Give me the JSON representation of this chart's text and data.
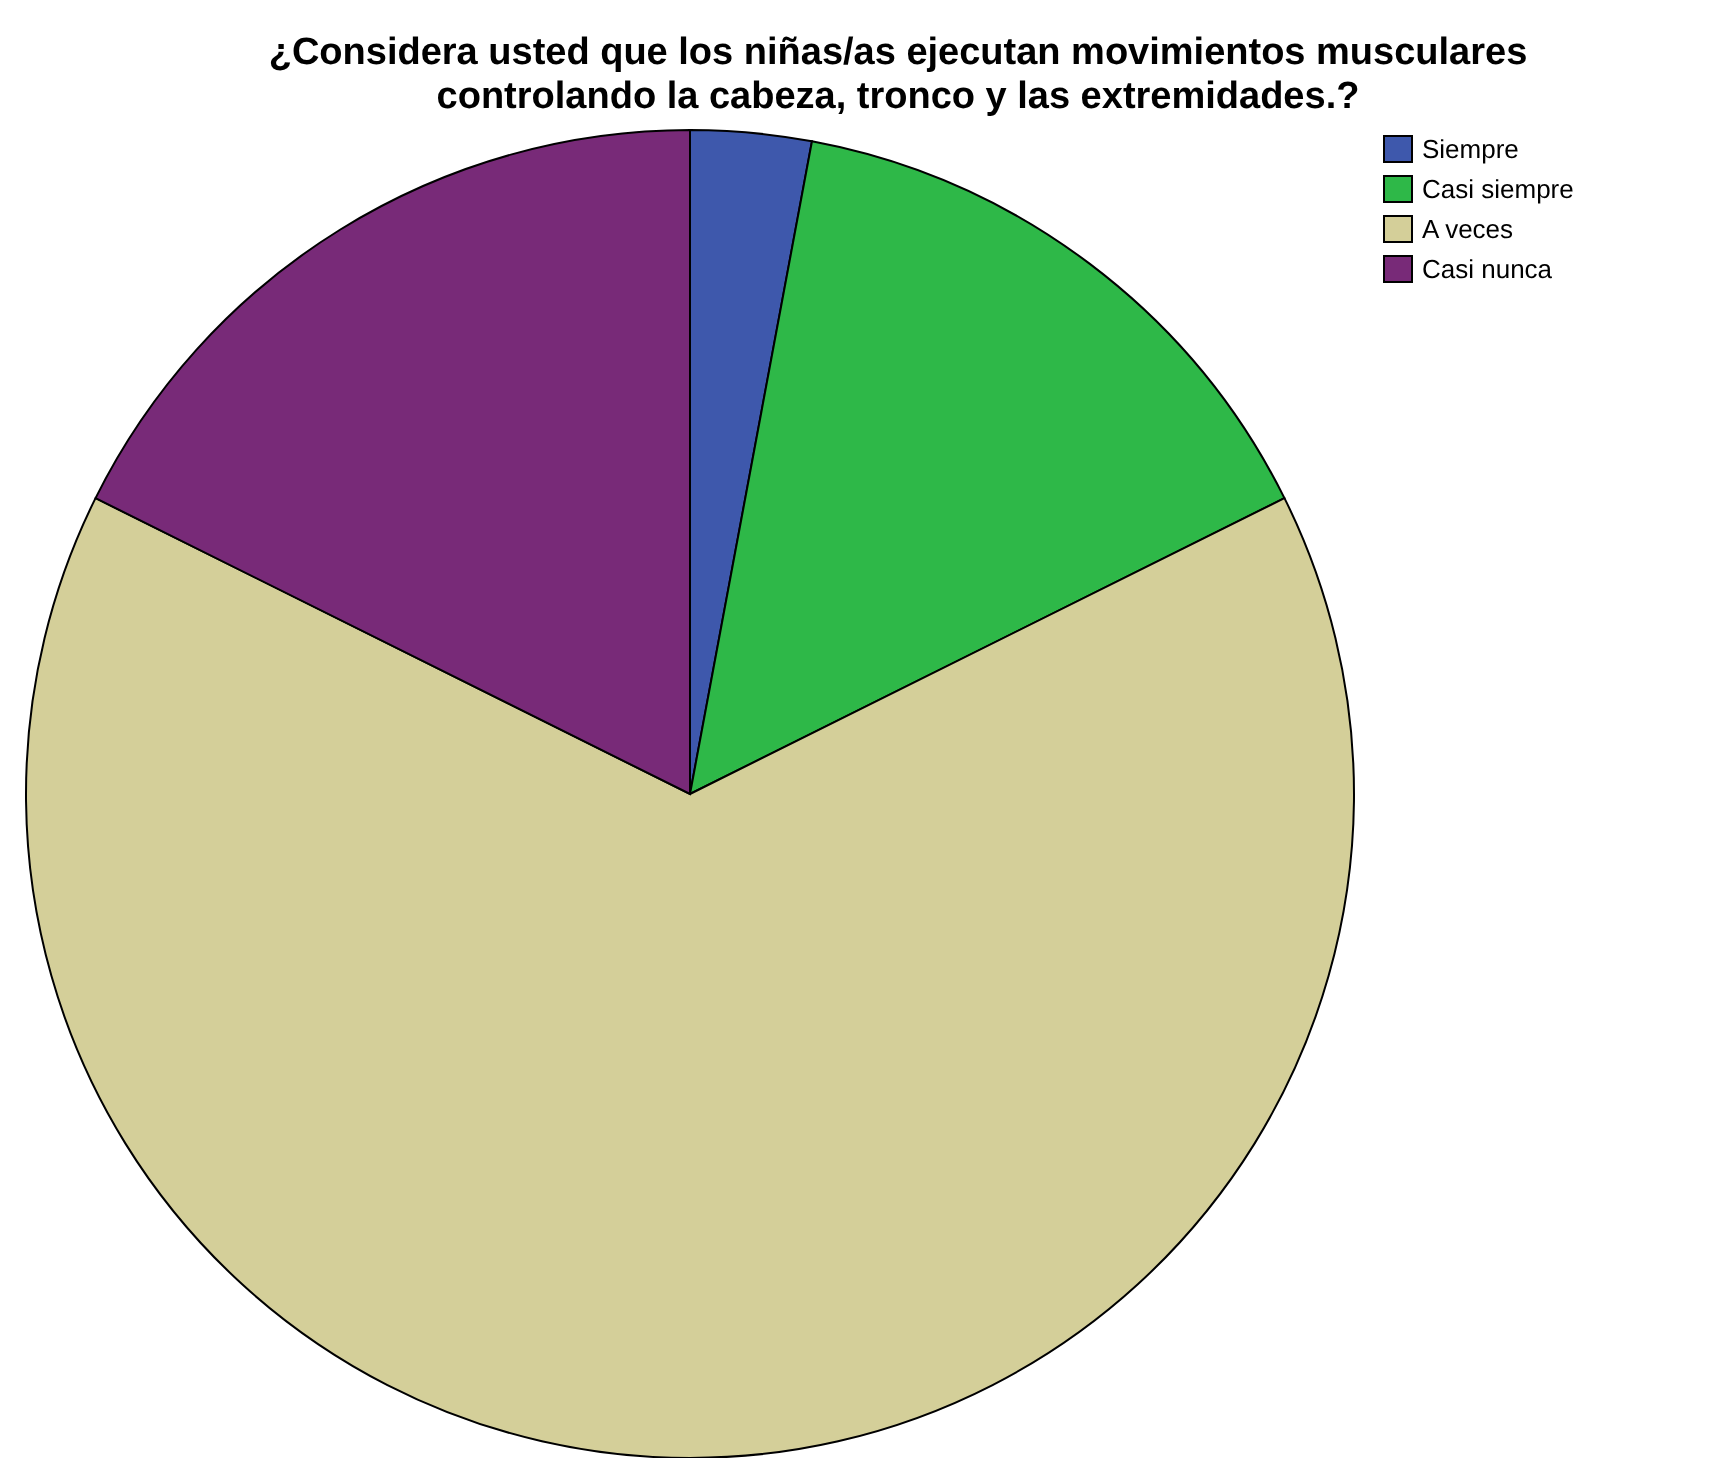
{
  "chart_data": {
    "type": "pie",
    "title": "¿Considera usted que los niñas/as ejecutan movimientos musculares controlando la cabeza, tronco y las extremidades.?",
    "categories": [
      "Siempre",
      "Casi siempre",
      "A veces",
      "Casi nunca"
    ],
    "values": [
      2.94,
      14.71,
      64.7,
      17.65
    ],
    "colors": [
      "#3e58ac",
      "#2eb848",
      "#d4cf99",
      "#782a78"
    ],
    "legend": "top right"
  }
}
